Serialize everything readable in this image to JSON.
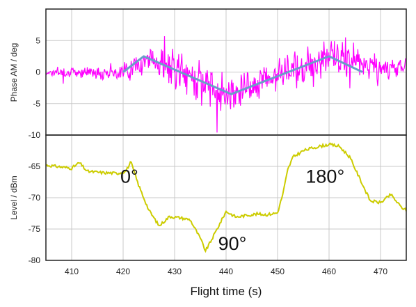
{
  "chart_data": [
    {
      "type": "line",
      "panel": "top",
      "ylabel": "Phase AM / deg",
      "xlim": [
        405,
        475
      ],
      "ylim": [
        -10,
        10
      ],
      "yticks": [
        -10,
        -5,
        0,
        5
      ],
      "grid": true,
      "series": [
        {
          "color": "#ff00ff",
          "style": "noisy",
          "envelope": {
            "x": [
              405,
              410,
              415,
              420,
              425,
              430,
              435,
              440,
              445,
              450,
              455,
              460,
              465,
              470,
              475
            ],
            "center": [
              0,
              0,
              0,
              0,
              2,
              0.5,
              -1.5,
              -3.5,
              -2,
              -0.5,
              1,
              2.5,
              1.5,
              0.5,
              1
            ],
            "amplitude": [
              1.2,
              1.2,
              1.5,
              2,
              3.5,
              4.5,
              5,
              4,
              3.5,
              4,
              4.5,
              4.5,
              5,
              3,
              2.5
            ]
          }
        },
        {
          "color": "#6a9ec8",
          "style": "fit",
          "x": [
            420,
            424,
            441,
            460,
            466.5
          ],
          "y": [
            0,
            2.5,
            -3.5,
            2.5,
            0
          ]
        }
      ]
    },
    {
      "type": "line",
      "panel": "bottom",
      "ylabel": "Level / dBm",
      "xlabel": "Flight time (s)",
      "xlim": [
        405,
        475
      ],
      "ylim": [
        -80,
        -60
      ],
      "yticks": [
        -80,
        -75,
        -70,
        -65
      ],
      "xticks": [
        410,
        420,
        430,
        440,
        450,
        460,
        470
      ],
      "grid": true,
      "series": [
        {
          "color": "#cccc00",
          "x": [
            405,
            408,
            410,
            411.5,
            413,
            416,
            419,
            420.5,
            421.5,
            423,
            425,
            427,
            429,
            431,
            433,
            435,
            436,
            437,
            440,
            442,
            444,
            446,
            448,
            450,
            451,
            452,
            453,
            455,
            457,
            460,
            462,
            464,
            466,
            468,
            470,
            472,
            474,
            475
          ],
          "y": [
            -64.8,
            -65.1,
            -65.3,
            -64.4,
            -65.8,
            -66.0,
            -66.1,
            -65.8,
            -64.3,
            -68,
            -72,
            -74.5,
            -73.0,
            -73.2,
            -73.5,
            -76.5,
            -78.5,
            -77.0,
            -72.2,
            -73.1,
            -72.8,
            -72.6,
            -72.7,
            -72.4,
            -69.5,
            -65.5,
            -63.5,
            -62.5,
            -62.0,
            -61.5,
            -61.8,
            -63.5,
            -67,
            -70.5,
            -70.8,
            -69.5,
            -71.5,
            -72.0
          ]
        }
      ],
      "annotations": [
        {
          "text": "0°",
          "x": 420,
          "y": -66.5
        },
        {
          "text": "90°",
          "x": 439,
          "y": -77.2
        },
        {
          "text": "180°",
          "x": 456,
          "y": -66.5
        }
      ]
    }
  ]
}
